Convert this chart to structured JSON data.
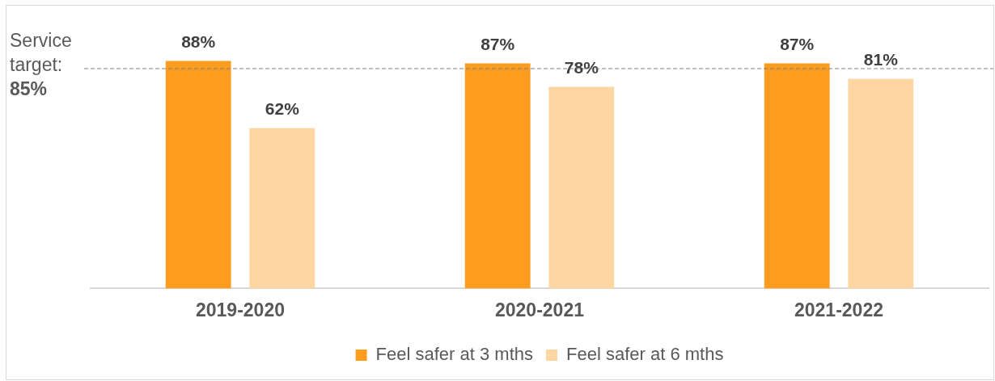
{
  "chart_data": {
    "type": "bar",
    "categories": [
      "2019-2020",
      "2020-2021",
      "2021-2022"
    ],
    "series": [
      {
        "name": "Feel safer at 3 mths",
        "color": "#fd9c1f",
        "values": [
          88,
          87,
          87
        ],
        "value_labels": [
          "88%",
          "87%",
          "87%"
        ]
      },
      {
        "name": "Feel safer at 6 mths",
        "color": "#fed6a1",
        "values": [
          62,
          78,
          81
        ],
        "value_labels": [
          "62%",
          "78%",
          "81%"
        ]
      }
    ],
    "tick_labels": "x",
    "legend": "bottom",
    "ref_lines": [
      {
        "axis": "y",
        "value": 85,
        "label": "Service target: 85%",
        "color": "#808080",
        "line_style": "dashed"
      }
    ]
  }
}
